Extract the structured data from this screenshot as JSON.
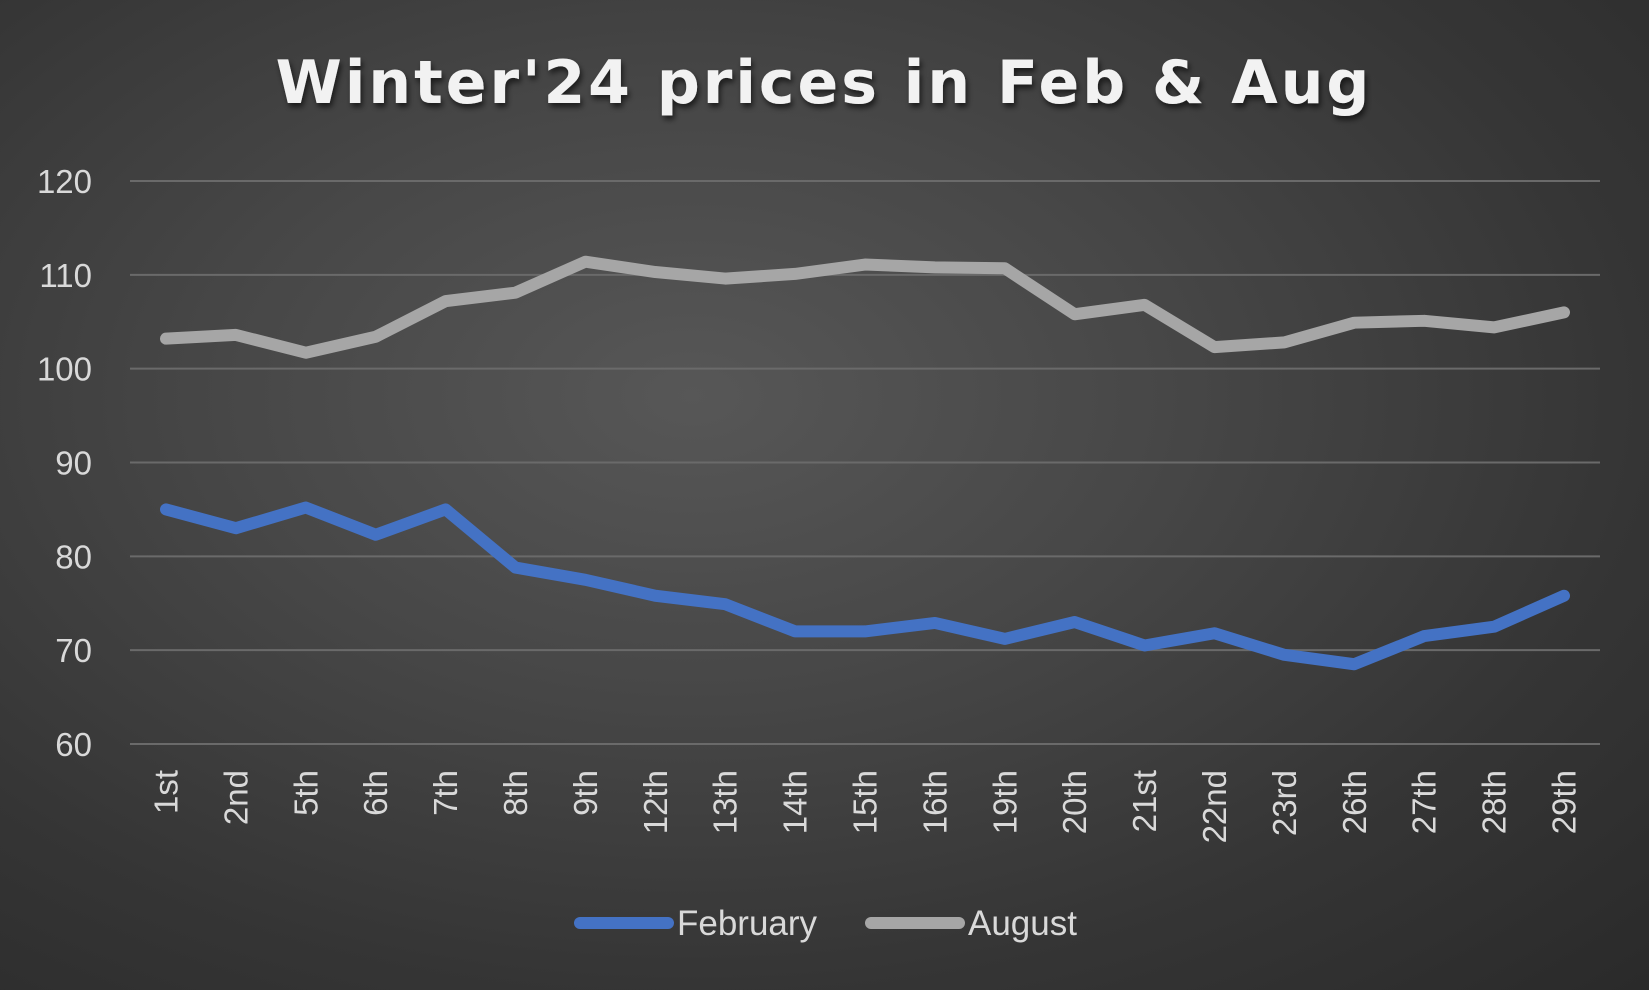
{
  "chart_data": {
    "type": "line",
    "title": "Winter'24 prices in Feb & Aug",
    "xlabel": "",
    "ylabel": "",
    "ylim": [
      60,
      120
    ],
    "yticks": [
      60,
      70,
      80,
      90,
      100,
      110,
      120
    ],
    "grid": true,
    "legend_position": "bottom",
    "categories": [
      "1st",
      "2nd",
      "5th",
      "6th",
      "7th",
      "8th",
      "9th",
      "12th",
      "13th",
      "14th",
      "15th",
      "16th",
      "19th",
      "20th",
      "21st",
      "22nd",
      "23rd",
      "26th",
      "27th",
      "28th",
      "29th"
    ],
    "series": [
      {
        "name": "February",
        "color": "#4472c4",
        "values": [
          85.0,
          83.0,
          85.2,
          82.3,
          85.0,
          78.8,
          77.5,
          75.8,
          74.9,
          72.0,
          72.0,
          72.9,
          71.2,
          73.0,
          70.5,
          71.8,
          69.5,
          68.5,
          71.5,
          72.5,
          75.8
        ]
      },
      {
        "name": "August",
        "color": "#a6a6a6",
        "values": [
          103.2,
          103.6,
          101.7,
          103.4,
          107.2,
          108.1,
          111.4,
          110.3,
          109.6,
          110.1,
          111.1,
          110.8,
          110.7,
          105.8,
          106.8,
          102.3,
          102.8,
          104.9,
          105.1,
          104.4,
          106.0
        ]
      }
    ]
  }
}
